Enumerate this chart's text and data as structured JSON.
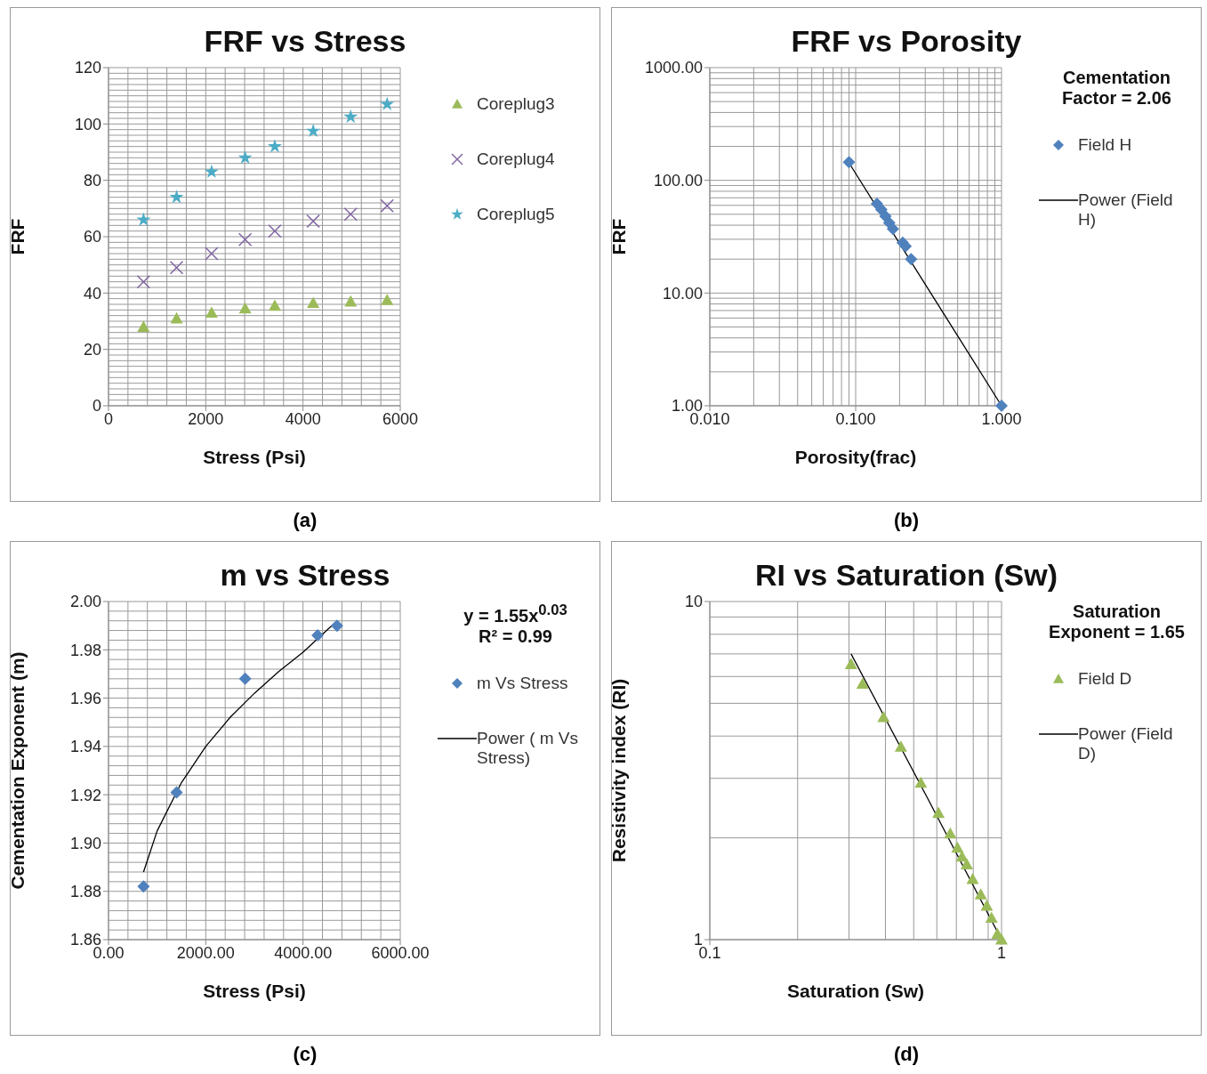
{
  "chart_data": [
    {
      "type": "scatter",
      "title": "FRF vs Stress",
      "xlabel": "Stress (Psi)",
      "ylabel": "FRF",
      "x": [
        720,
        1400,
        2120,
        2810,
        3420,
        4210,
        4980,
        5730
      ],
      "series": [
        {
          "name": "Coreplug3",
          "color": "#9bbb59",
          "marker": "triangle",
          "values": [
            28,
            31,
            33,
            34.5,
            35.5,
            36.5,
            37,
            37.5
          ]
        },
        {
          "name": "Coreplug4",
          "color": "#8064a2",
          "marker": "cross",
          "values": [
            44,
            49,
            54,
            59,
            62,
            65.5,
            68,
            71
          ]
        },
        {
          "name": "Coreplug5",
          "color": "#4bacc6",
          "marker": "star",
          "values": [
            66,
            74,
            83,
            88,
            92,
            97.5,
            102.5,
            107
          ]
        }
      ],
      "xlim": [
        0,
        6000
      ],
      "xticks": [
        0,
        2000,
        4000,
        6000
      ],
      "ylim": [
        0,
        120
      ],
      "yticks": [
        0,
        20,
        40,
        60,
        80,
        100,
        120
      ],
      "grid": true,
      "legend": "right",
      "annotations": [
        "(a)"
      ]
    },
    {
      "type": "scatter",
      "title": "FRF vs Porosity",
      "xlabel": "Porosity(frac)",
      "ylabel": "FRF",
      "log": "xy",
      "series": [
        {
          "name": "Field H",
          "color": "#4f81bd",
          "marker": "diamond",
          "x": [
            0.09,
            0.14,
            0.15,
            0.16,
            0.17,
            0.18,
            0.21,
            0.22,
            0.24,
            1
          ],
          "values": [
            145,
            62,
            55,
            48,
            42,
            37,
            28,
            26,
            20,
            1
          ]
        },
        {
          "name": "Power (Field H)",
          "type": "line",
          "color": "#000000",
          "marker": "none",
          "x": [
            0.09,
            0.2,
            0.5,
            1
          ],
          "values": [
            143,
            27.5,
            4.17,
            1
          ]
        }
      ],
      "xlim": [
        0.01,
        1
      ],
      "xticks": [
        {
          "value": 0.01,
          "label": "0.010"
        },
        {
          "value": 0.1,
          "label": "0.100"
        },
        {
          "value": 1,
          "label": "1.000"
        }
      ],
      "ylim": [
        1,
        1000
      ],
      "yticks": [
        {
          "value": 1,
          "label": "1.00"
        },
        {
          "value": 10,
          "label": "10.00"
        },
        {
          "value": 100,
          "label": "100.00"
        },
        {
          "value": 1000,
          "label": "1000.00"
        }
      ],
      "grid": true,
      "legend": "right",
      "annotations": [
        "Cementation Factor = 2.06",
        "(b)"
      ]
    },
    {
      "type": "scatter",
      "title": "m vs Stress",
      "xlabel": "Stress (Psi)",
      "ylabel": "Cementation  Exponent  (m)",
      "series": [
        {
          "name": "m Vs Stress",
          "color": "#4f81bd",
          "marker": "diamond",
          "x": [
            720,
            1400,
            2810,
            4300,
            4700
          ],
          "values": [
            1.882,
            1.921,
            1.968,
            1.986,
            1.99
          ]
        },
        {
          "name": "Power ( m Vs Stress)",
          "type": "line",
          "color": "#000000",
          "marker": "none",
          "x": [
            720,
            1000,
            1500,
            2000,
            2500,
            3000,
            3500,
            4000,
            4700
          ],
          "values": [
            1.888,
            1.905,
            1.925,
            1.94,
            1.952,
            1.962,
            1.971,
            1.979,
            1.992
          ]
        }
      ],
      "xlim": [
        0,
        6000
      ],
      "xticks": [
        {
          "value": 0,
          "label": "0.00"
        },
        {
          "value": 2000,
          "label": "2000.00"
        },
        {
          "value": 4000,
          "label": "4000.00"
        },
        {
          "value": 6000,
          "label": "6000.00"
        }
      ],
      "ylim": [
        1.86,
        2
      ],
      "yticks": [
        1.86,
        1.88,
        {
          "value": 1.9,
          "label": "1.90"
        },
        1.92,
        1.94,
        1.96,
        1.98,
        {
          "value": 2,
          "label": "2.00"
        }
      ],
      "grid": true,
      "legend": "right",
      "annotations": [
        "y = 1.55x$^{0.03}$",
        "R² = 0.99",
        "(c)"
      ]
    },
    {
      "type": "scatter",
      "title": "RI vs Saturation (Sw)",
      "xlabel": "Saturation (Sw)",
      "ylabel": "Resistivity  index  (RI)",
      "log": "xy",
      "series": [
        {
          "name": "Field D",
          "color": "#9bbb59",
          "marker": "triangle",
          "x": [
            0.305,
            0.334,
            0.394,
            0.452,
            0.529,
            0.608,
            0.667,
            0.706,
            0.732,
            0.76,
            0.796,
            0.849,
            0.89,
            0.924,
            0.968,
            1
          ],
          "values": [
            6.53,
            5.71,
            4.55,
            3.72,
            2.91,
            2.37,
            2.06,
            1.87,
            1.76,
            1.67,
            1.51,
            1.36,
            1.26,
            1.16,
            1.04,
            1
          ]
        },
        {
          "name": "Power (Field D)",
          "type": "line",
          "color": "#000000",
          "marker": "none",
          "x": [
            0.305,
            0.55,
            1
          ],
          "values": [
            7,
            2.68,
            1
          ]
        }
      ],
      "xlim": [
        0.1,
        1
      ],
      "xticks": [
        0.1,
        1
      ],
      "ylim": [
        1,
        10
      ],
      "yticks": [
        1,
        10
      ],
      "grid": true,
      "legend": "right",
      "annotations": [
        "Saturation Exponent = 1.65",
        "(d)"
      ]
    }
  ]
}
